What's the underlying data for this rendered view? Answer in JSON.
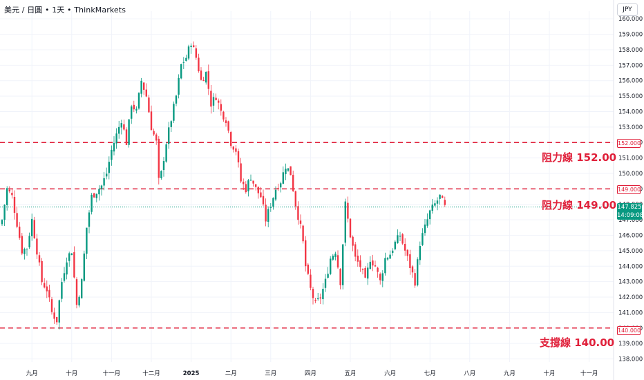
{
  "header": {
    "symbol": "美元 / 日圓",
    "interval": "1天",
    "source": "ThinkMarkets",
    "currency": "JPY"
  },
  "annotations": {
    "resistance_152_label": "阻力線 152.00",
    "resistance_149_label": "阻力線 149.00",
    "support_140_label": "支撐線 140.00",
    "level_152_tag": "152.000",
    "level_149_tag": "149.000",
    "level_140_tag": "140.000"
  },
  "price_tag": {
    "price": "147.825",
    "countdown": "14:09:08"
  },
  "colors": {
    "up": "#089981",
    "down": "#f23645",
    "level_line": "#e0203a",
    "grid": "#f0f3fa",
    "axis_text": "#131722"
  },
  "chart_data": {
    "type": "candlestick",
    "title": "",
    "xlabel": "",
    "ylabel": "",
    "ylim": [
      137.8,
      160.5
    ],
    "y_ticks": [
      "138.000",
      "139.000",
      "140.000",
      "141.000",
      "142.000",
      "143.000",
      "144.000",
      "145.000",
      "146.000",
      "147.000",
      "148.000",
      "149.000",
      "150.000",
      "151.000",
      "152.000",
      "153.000",
      "154.000",
      "155.000",
      "156.000",
      "157.000",
      "158.000",
      "159.000",
      "160.000"
    ],
    "x_ticks": [
      "九月",
      "十月",
      "十一月",
      "十二月",
      "2025",
      "二月",
      "三月",
      "四月",
      "五月",
      "六月",
      "七月",
      "八月",
      "九月",
      "十月",
      "十一月"
    ],
    "horizontal_levels": [
      {
        "value": 152.0,
        "label": "阻力線 152.00"
      },
      {
        "value": 149.0,
        "label": "阻力線 149.00"
      },
      {
        "value": 140.0,
        "label": "支撐線 140.00"
      }
    ],
    "last_price": 147.825,
    "close_path": [
      [
        0,
        147.0
      ],
      [
        2,
        149.0
      ],
      [
        4,
        148.5
      ],
      [
        8,
        145.0
      ],
      [
        10,
        145.2
      ],
      [
        12,
        147.0
      ],
      [
        15,
        144.0
      ],
      [
        16,
        143.0
      ],
      [
        18,
        142.5
      ],
      [
        20,
        141.0
      ],
      [
        22,
        140.5
      ],
      [
        24,
        143.0
      ],
      [
        26,
        144.5
      ],
      [
        28,
        145.0
      ],
      [
        30,
        141.5
      ],
      [
        32,
        143.0
      ],
      [
        34,
        146.5
      ],
      [
        36,
        148.5
      ],
      [
        40,
        149.2
      ],
      [
        42,
        150.0
      ],
      [
        44,
        151.5
      ],
      [
        46,
        152.5
      ],
      [
        48,
        153.5
      ],
      [
        50,
        152.0
      ],
      [
        52,
        154.5
      ],
      [
        54,
        154.0
      ],
      [
        56,
        156.0
      ],
      [
        58,
        155.0
      ],
      [
        60,
        153.0
      ],
      [
        62,
        152.0
      ],
      [
        63,
        149.5
      ],
      [
        64,
        150.0
      ],
      [
        66,
        152.0
      ],
      [
        68,
        153.5
      ],
      [
        70,
        155.0
      ],
      [
        72,
        157.0
      ],
      [
        74,
        157.5
      ],
      [
        76,
        158.5
      ],
      [
        78,
        157.5
      ],
      [
        80,
        156.0
      ],
      [
        82,
        156.5
      ],
      [
        84,
        154.5
      ],
      [
        86,
        155.0
      ],
      [
        88,
        154.0
      ],
      [
        90,
        153.5
      ],
      [
        92,
        152.0
      ],
      [
        94,
        151.5
      ],
      [
        96,
        149.5
      ],
      [
        98,
        149.0
      ],
      [
        100,
        149.8
      ],
      [
        102,
        149.0
      ],
      [
        104,
        148.5
      ],
      [
        106,
        147.0
      ],
      [
        108,
        148.0
      ],
      [
        110,
        149.0
      ],
      [
        112,
        149.5
      ],
      [
        114,
        150.5
      ],
      [
        116,
        150.0
      ],
      [
        118,
        148.0
      ],
      [
        120,
        146.5
      ],
      [
        121,
        145.5
      ],
      [
        122,
        144.0
      ],
      [
        124,
        142.5
      ],
      [
        126,
        141.5
      ],
      [
        128,
        142.0
      ],
      [
        130,
        143.0
      ],
      [
        132,
        144.5
      ],
      [
        134,
        145.0
      ],
      [
        136,
        143.0
      ],
      [
        138,
        148.0
      ],
      [
        140,
        146.0
      ],
      [
        142,
        144.5
      ],
      [
        144,
        144.0
      ],
      [
        146,
        143.0
      ],
      [
        148,
        144.5
      ],
      [
        150,
        144.0
      ],
      [
        152,
        143.0
      ],
      [
        154,
        144.5
      ],
      [
        156,
        144.8
      ],
      [
        158,
        145.5
      ],
      [
        160,
        146.0
      ],
      [
        162,
        145.0
      ],
      [
        164,
        144.0
      ],
      [
        166,
        143.0
      ],
      [
        168,
        145.5
      ],
      [
        170,
        146.5
      ],
      [
        172,
        147.5
      ],
      [
        174,
        148.0
      ],
      [
        176,
        148.5
      ],
      [
        178,
        147.8
      ]
    ],
    "x_tick_index": [
      12,
      28,
      44,
      60,
      76,
      92,
      108,
      124,
      140,
      156,
      172,
      188,
      204,
      220,
      236
    ],
    "grid": true
  }
}
